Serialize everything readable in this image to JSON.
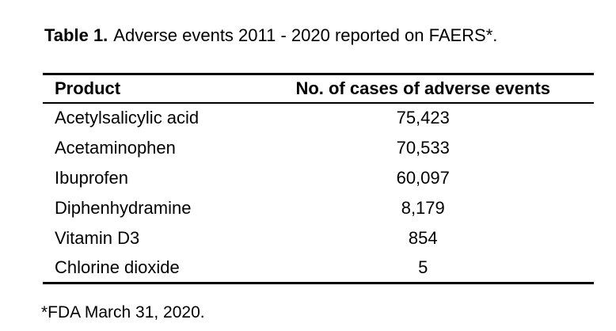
{
  "page": {
    "background_color": "#ffffff",
    "text_color": "#000000"
  },
  "caption": {
    "label": "Table 1.",
    "text": "Adverse events 2011 - 2020 reported on FAERS*."
  },
  "table": {
    "columns": [
      {
        "key": "product",
        "label": "Product",
        "align": "left"
      },
      {
        "key": "cases",
        "label": "No. of cases of adverse events",
        "align": "center"
      }
    ],
    "rows": [
      {
        "product": "Acetylsalicylic acid",
        "cases": "75,423"
      },
      {
        "product": "Acetaminophen",
        "cases": "70,533"
      },
      {
        "product": "Ibuprofen",
        "cases": "60,097"
      },
      {
        "product": "Diphenhydramine",
        "cases": "8,179"
      },
      {
        "product": "Vitamin D3",
        "cases": "854"
      },
      {
        "product": "Chlorine dioxide",
        "cases": "5"
      }
    ]
  },
  "footnote": {
    "text": "*FDA March 31, 2020."
  }
}
